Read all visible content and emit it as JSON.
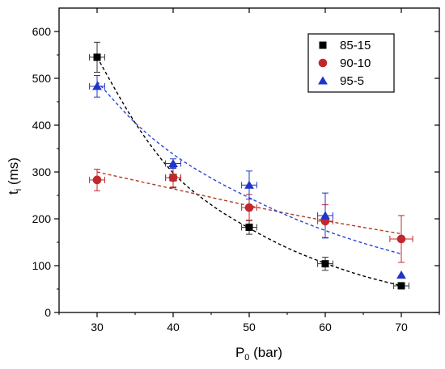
{
  "chart_data": {
    "type": "scatter",
    "x_axis": {
      "label_main": "P",
      "label_sub": "0",
      "label_rest": " (bar)",
      "range": [
        25,
        75
      ],
      "ticks": [
        30,
        40,
        50,
        60,
        70
      ]
    },
    "y_axis": {
      "label_main": "t",
      "label_sub": "i",
      "label_rest": " (ms)",
      "range": [
        0,
        650
      ],
      "ticks": [
        0,
        100,
        200,
        300,
        400,
        500,
        600
      ]
    },
    "grid": false,
    "legend_position": "top-right",
    "series": [
      {
        "name": "85-15",
        "marker": "square",
        "color": "#000000",
        "fit_color": "#000000",
        "points": [
          {
            "x": 30,
            "y": 545,
            "yerr": 32,
            "xerr": 1
          },
          {
            "x": 40,
            "y": 288,
            "yerr": 22,
            "xerr": 1
          },
          {
            "x": 50,
            "y": 182,
            "yerr": 15,
            "xerr": 1
          },
          {
            "x": 60,
            "y": 104,
            "yerr": 14,
            "xerr": 1
          },
          {
            "x": 70,
            "y": 57,
            "yerr": 6,
            "xerr": 1
          }
        ],
        "fit": [
          [
            30,
            545
          ],
          [
            35,
            405
          ],
          [
            40,
            298
          ],
          [
            45,
            230
          ],
          [
            50,
            180
          ],
          [
            55,
            138
          ],
          [
            60,
            105
          ],
          [
            65,
            78
          ],
          [
            70,
            57
          ]
        ]
      },
      {
        "name": "90-10",
        "marker": "circle",
        "color": "#c0282d",
        "fit_color": "#b23a22",
        "points": [
          {
            "x": 30,
            "y": 283,
            "yerr": 23,
            "xerr": 1
          },
          {
            "x": 40,
            "y": 288,
            "yerr": 20,
            "xerr": 1
          },
          {
            "x": 50,
            "y": 224,
            "yerr": 28,
            "xerr": 1
          },
          {
            "x": 60,
            "y": 195,
            "yerr": 35,
            "xerr": 1
          },
          {
            "x": 70,
            "y": 157,
            "yerr": 50,
            "xerr": 1.5
          }
        ],
        "fit": [
          [
            30,
            300
          ],
          [
            40,
            264
          ],
          [
            50,
            228
          ],
          [
            60,
            196
          ],
          [
            70,
            168
          ]
        ]
      },
      {
        "name": "95-5",
        "marker": "triangle",
        "color": "#1f35c9",
        "fit_color": "#2a44d6",
        "points": [
          {
            "x": 30,
            "y": 483,
            "yerr": 23,
            "xerr": 1
          },
          {
            "x": 40,
            "y": 318,
            "yerr": 10,
            "xerr": 1
          },
          {
            "x": 50,
            "y": 272,
            "yerr": 30,
            "xerr": 1
          },
          {
            "x": 60,
            "y": 207,
            "yerr": 48,
            "xerr": 1
          },
          {
            "x": 70,
            "y": 80,
            "yerr": 0,
            "xerr": 0
          }
        ],
        "fit": [
          [
            30,
            493
          ],
          [
            35,
            405
          ],
          [
            40,
            338
          ],
          [
            45,
            287
          ],
          [
            50,
            245
          ],
          [
            55,
            207
          ],
          [
            60,
            175
          ],
          [
            65,
            148
          ],
          [
            70,
            125
          ]
        ]
      }
    ]
  }
}
